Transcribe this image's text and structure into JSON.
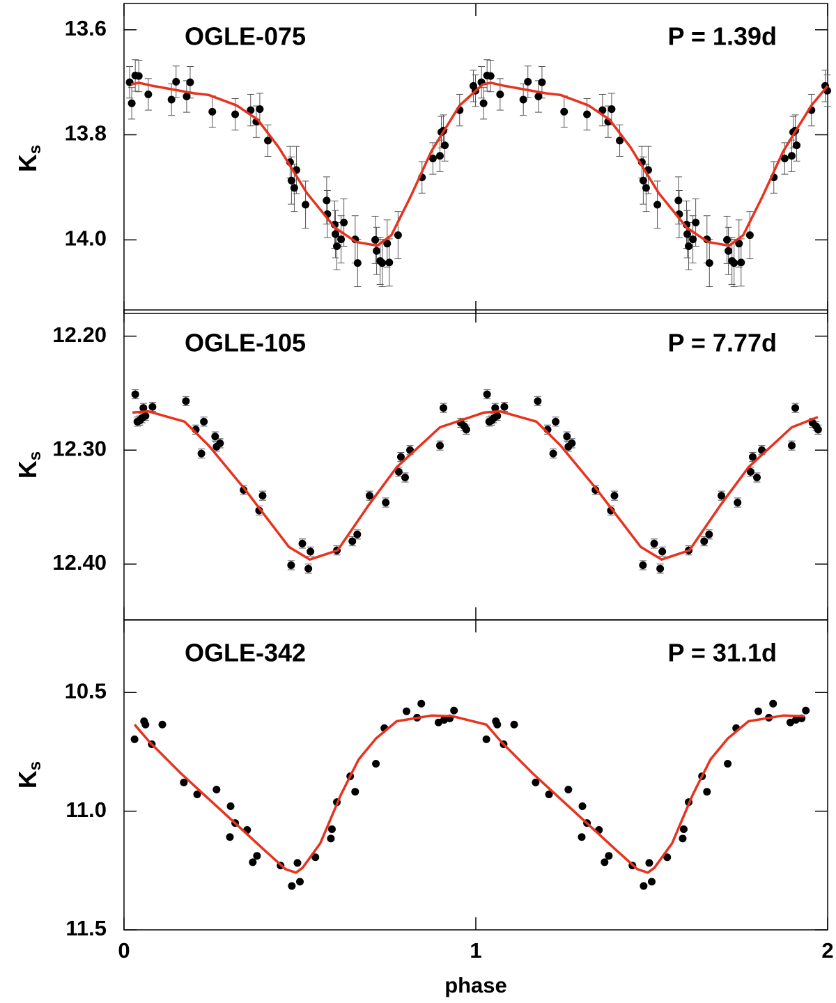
{
  "chart_data": [
    {
      "type": "scatter",
      "title": "OGLE-075",
      "annotation": "P = 1.39d",
      "ylabel": "K",
      "ylabel_sub": "s",
      "xlim": [
        0,
        2
      ],
      "xticks": [
        0,
        1,
        2
      ],
      "ylim": [
        13.55,
        14.14
      ],
      "y_inverted": true,
      "yticks": [
        13.6,
        13.8,
        {
          "value": 14.0,
          "label": "14.0"
        }
      ],
      "points": {
        "color": "#000000",
        "x": [
          0.016,
          0.022,
          0.032,
          0.042,
          0.069,
          0.135,
          0.148,
          0.178,
          0.188,
          0.251,
          0.316,
          0.36,
          0.376,
          0.386,
          0.409,
          0.472,
          0.476,
          0.484,
          0.49,
          0.516,
          0.576,
          0.578,
          0.599,
          0.601,
          0.605,
          0.617,
          0.625,
          0.657,
          0.664,
          0.714,
          0.718,
          0.728,
          0.734,
          0.748,
          0.754,
          0.779,
          0.847,
          0.878,
          0.898,
          0.902,
          0.908,
          0.912,
          0.954,
          0.993,
          0.999,
          1.016,
          1.022,
          1.032,
          1.042,
          1.069,
          1.135,
          1.148,
          1.178,
          1.188,
          1.251,
          1.316,
          1.36,
          1.376,
          1.386,
          1.409,
          1.472,
          1.476,
          1.484,
          1.49,
          1.516,
          1.576,
          1.578,
          1.599,
          1.601,
          1.605,
          1.617,
          1.625,
          1.657,
          1.664,
          1.714,
          1.718,
          1.728,
          1.734,
          1.748,
          1.754,
          1.779,
          1.847,
          1.878,
          1.898,
          1.902,
          1.908,
          1.912,
          1.954,
          1.993,
          1.999
        ],
        "values": [
          13.7,
          13.74,
          13.687,
          13.688,
          13.723,
          13.733,
          13.699,
          13.727,
          13.7,
          13.756,
          13.761,
          13.753,
          13.775,
          13.751,
          13.811,
          13.852,
          13.887,
          13.901,
          13.867,
          13.933,
          13.925,
          13.951,
          13.971,
          13.989,
          14.012,
          13.999,
          13.967,
          13.999,
          14.044,
          14.0,
          14.021,
          14.04,
          14.044,
          14.007,
          14.043,
          13.991,
          13.881,
          13.845,
          13.84,
          13.795,
          13.792,
          13.82,
          13.753,
          13.707,
          13.716,
          13.7,
          13.74,
          13.687,
          13.688,
          13.723,
          13.733,
          13.699,
          13.727,
          13.7,
          13.756,
          13.761,
          13.753,
          13.775,
          13.751,
          13.811,
          13.852,
          13.887,
          13.901,
          13.867,
          13.933,
          13.925,
          13.951,
          13.971,
          13.989,
          14.012,
          13.999,
          13.967,
          13.999,
          14.044,
          14.0,
          14.021,
          14.04,
          14.044,
          14.007,
          14.043,
          13.991,
          13.881,
          13.845,
          13.84,
          13.795,
          13.792,
          13.82,
          13.753,
          13.707,
          13.716
        ],
        "errors": [
          0.03,
          0.03,
          0.03,
          0.03,
          0.03,
          0.03,
          0.03,
          0.03,
          0.03,
          0.03,
          0.03,
          0.03,
          0.03,
          0.03,
          0.03,
          0.03,
          0.045,
          0.045,
          0.045,
          0.045,
          0.045,
          0.045,
          0.045,
          0.045,
          0.045,
          0.045,
          0.045,
          0.045,
          0.045,
          0.045,
          0.045,
          0.045,
          0.045,
          0.045,
          0.045,
          0.045,
          0.03,
          0.03,
          0.03,
          0.03,
          0.03,
          0.03,
          0.03,
          0.03,
          0.03,
          0.03,
          0.03,
          0.03,
          0.03,
          0.03,
          0.03,
          0.03,
          0.03,
          0.03,
          0.03,
          0.03,
          0.03,
          0.03,
          0.03,
          0.03,
          0.03,
          0.045,
          0.045,
          0.045,
          0.045,
          0.045,
          0.045,
          0.045,
          0.045,
          0.045,
          0.045,
          0.045,
          0.045,
          0.045,
          0.045,
          0.045,
          0.045,
          0.045,
          0.045,
          0.045,
          0.045,
          0.03,
          0.03,
          0.03,
          0.03,
          0.03,
          0.03,
          0.03,
          0.03,
          0.03
        ]
      },
      "fit": {
        "color": "#e8321e",
        "x": [
          0.02,
          0.043,
          0.083,
          0.2,
          0.24,
          0.32,
          0.38,
          0.44,
          0.52,
          0.6,
          0.66,
          0.72,
          0.76,
          0.815,
          0.874,
          0.954,
          1.02,
          1.043,
          1.083,
          1.2,
          1.24,
          1.32,
          1.38,
          1.44,
          1.52,
          1.6,
          1.66,
          1.72,
          1.76,
          1.815,
          1.874,
          1.954,
          2.0
        ],
        "values": [
          13.704,
          13.701,
          13.707,
          13.721,
          13.724,
          13.744,
          13.771,
          13.824,
          13.911,
          13.977,
          14.004,
          14.011,
          13.991,
          13.917,
          13.831,
          13.744,
          13.704,
          13.701,
          13.707,
          13.721,
          13.724,
          13.744,
          13.771,
          13.824,
          13.911,
          13.977,
          14.004,
          14.011,
          13.991,
          13.917,
          13.831,
          13.744,
          13.707
        ]
      }
    },
    {
      "type": "scatter",
      "title": "OGLE-105",
      "annotation": "P = 7.77d",
      "ylabel": "K",
      "ylabel_sub": "s",
      "xlim": [
        0,
        2
      ],
      "xticks": [
        0,
        1,
        2
      ],
      "ylim": [
        12.177,
        12.449
      ],
      "y_inverted": true,
      "yticks": [
        {
          "value": 12.2,
          "label": "12.20"
        },
        {
          "value": 12.3,
          "label": "12.30"
        },
        {
          "value": 12.4,
          "label": "12.40"
        }
      ],
      "points": {
        "color": "#000000",
        "error": 0.004,
        "x": [
          0.032,
          0.038,
          0.045,
          0.051,
          0.055,
          0.061,
          0.081,
          0.176,
          0.204,
          0.22,
          0.227,
          0.259,
          0.263,
          0.273,
          0.34,
          0.384,
          0.394,
          0.475,
          0.507,
          0.524,
          0.53,
          0.605,
          0.649,
          0.663,
          0.698,
          0.744,
          0.781,
          0.787,
          0.799,
          0.813,
          0.898,
          0.908,
          0.957,
          0.967,
          0.973,
          1.032,
          1.038,
          1.045,
          1.051,
          1.055,
          1.061,
          1.081,
          1.176,
          1.204,
          1.22,
          1.227,
          1.259,
          1.263,
          1.273,
          1.34,
          1.384,
          1.394,
          1.475,
          1.507,
          1.524,
          1.53,
          1.605,
          1.649,
          1.663,
          1.698,
          1.744,
          1.781,
          1.787,
          1.799,
          1.813,
          1.898,
          1.908,
          1.957,
          1.967,
          1.973
        ],
        "values": [
          12.251,
          12.275,
          12.274,
          12.272,
          12.263,
          12.27,
          12.262,
          12.257,
          12.282,
          12.303,
          12.275,
          12.288,
          12.297,
          12.294,
          12.335,
          12.353,
          12.34,
          12.401,
          12.382,
          12.404,
          12.389,
          12.388,
          12.38,
          12.374,
          12.34,
          12.346,
          12.319,
          12.306,
          12.324,
          12.3,
          12.296,
          12.263,
          12.276,
          12.279,
          12.282,
          12.251,
          12.275,
          12.274,
          12.272,
          12.263,
          12.27,
          12.262,
          12.257,
          12.282,
          12.303,
          12.275,
          12.288,
          12.297,
          12.294,
          12.335,
          12.353,
          12.34,
          12.401,
          12.382,
          12.404,
          12.389,
          12.388,
          12.38,
          12.374,
          12.34,
          12.346,
          12.319,
          12.306,
          12.324,
          12.3,
          12.296,
          12.263,
          12.276,
          12.279,
          12.282
        ]
      },
      "fit": {
        "color": "#e8321e",
        "x": [
          0.024,
          0.069,
          0.172,
          0.241,
          0.34,
          0.469,
          0.528,
          0.607,
          0.696,
          0.775,
          0.898,
          1.024,
          1.069,
          1.172,
          1.241,
          1.34,
          1.469,
          1.528,
          1.607,
          1.696,
          1.775,
          1.898,
          1.972
        ],
        "values": [
          12.267,
          12.266,
          12.275,
          12.296,
          12.333,
          12.385,
          12.396,
          12.388,
          12.348,
          12.315,
          12.28,
          12.267,
          12.266,
          12.275,
          12.296,
          12.333,
          12.385,
          12.396,
          12.388,
          12.348,
          12.315,
          12.28,
          12.271
        ]
      }
    },
    {
      "type": "scatter",
      "title": "OGLE-342",
      "annotation": "P = 31.1d",
      "ylabel": "K",
      "ylabel_sub": "s",
      "xlabel": "phase",
      "xlim": [
        0,
        2
      ],
      "xticks": [
        0,
        1,
        2
      ],
      "ylim": [
        10.194,
        11.5
      ],
      "y_inverted": true,
      "yticks": [
        10.5,
        {
          "value": 11.0,
          "label": "11.0"
        },
        11.5
      ],
      "points": {
        "color": "#000000",
        "x": [
          0.03,
          0.057,
          0.061,
          0.079,
          0.109,
          0.17,
          0.208,
          0.263,
          0.303,
          0.301,
          0.316,
          0.35,
          0.366,
          0.378,
          0.445,
          0.477,
          0.5,
          0.493,
          0.544,
          0.588,
          0.591,
          0.605,
          0.643,
          0.657,
          0.716,
          0.74,
          0.803,
          0.833,
          0.845,
          0.894,
          0.91,
          0.926,
          0.938,
          1.03,
          1.057,
          1.061,
          1.079,
          1.109,
          1.17,
          1.208,
          1.263,
          1.303,
          1.301,
          1.316,
          1.35,
          1.366,
          1.378,
          1.445,
          1.477,
          1.5,
          1.493,
          1.544,
          1.588,
          1.591,
          1.605,
          1.643,
          1.657,
          1.716,
          1.74,
          1.803,
          1.833,
          1.845,
          1.894,
          1.91,
          1.926,
          1.938
        ],
        "values": [
          10.697,
          10.621,
          10.635,
          10.718,
          10.635,
          10.879,
          10.929,
          10.909,
          10.979,
          11.109,
          11.05,
          11.079,
          11.215,
          11.188,
          11.229,
          11.315,
          11.297,
          11.218,
          11.194,
          11.115,
          11.076,
          10.962,
          10.853,
          10.918,
          10.8,
          10.65,
          10.579,
          10.606,
          10.547,
          10.626,
          10.615,
          10.609,
          10.576,
          10.697,
          10.621,
          10.635,
          10.718,
          10.635,
          10.879,
          10.929,
          10.909,
          10.979,
          11.109,
          11.05,
          11.079,
          11.215,
          11.188,
          11.229,
          11.315,
          11.297,
          11.218,
          11.194,
          11.115,
          11.076,
          10.962,
          10.853,
          10.918,
          10.8,
          10.65,
          10.579,
          10.606,
          10.547,
          10.626,
          10.615,
          10.609,
          10.576
        ]
      },
      "fit": {
        "color": "#e8321e",
        "x": [
          0.03,
          0.073,
          0.162,
          0.281,
          0.4,
          0.459,
          0.489,
          0.508,
          0.558,
          0.617,
          0.667,
          0.716,
          0.775,
          0.874,
          0.934,
          1.03,
          1.073,
          1.162,
          1.281,
          1.4,
          1.459,
          1.489,
          1.508,
          1.558,
          1.617,
          1.667,
          1.716,
          1.775,
          1.874,
          1.934
        ],
        "values": [
          10.635,
          10.709,
          10.841,
          11.003,
          11.165,
          11.244,
          11.259,
          11.238,
          11.135,
          10.929,
          10.782,
          10.694,
          10.621,
          10.597,
          10.6,
          10.635,
          10.709,
          10.841,
          11.003,
          11.165,
          11.244,
          11.259,
          11.238,
          11.135,
          10.929,
          10.782,
          10.694,
          10.621,
          10.597,
          10.6
        ]
      }
    }
  ]
}
